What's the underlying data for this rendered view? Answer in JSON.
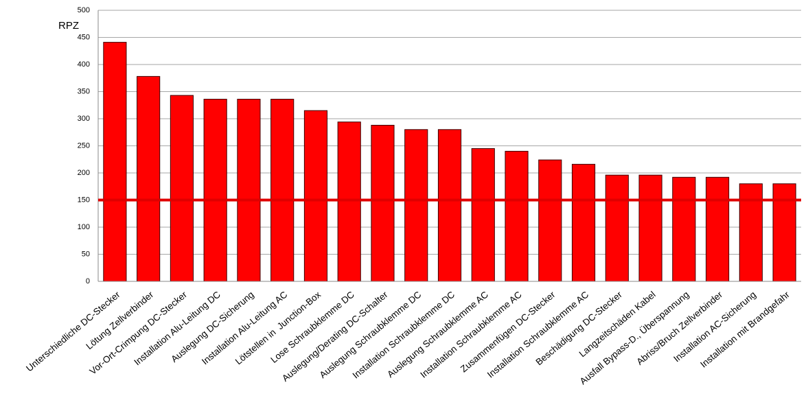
{
  "chart_data": {
    "type": "bar",
    "y_label": "RPZ",
    "categories": [
      "Unterschiedliche DC-Stecker",
      "Lötung Zellverbinder",
      "Vor-Ort-Crimpung DC-Stecker",
      "Installation Alu-Leitung DC",
      "Auslegung DC-Sicherung",
      "Installation Alu-Leitung AC",
      "Lötstellen in  Junction-Box",
      "Lose Schraubklemme DC",
      "Auslegung/Derating DC-Schalter",
      "Auslegung Schraubklemme DC",
      "Installation Schraubklemme DC",
      "Auslegung Schraubklemme AC",
      "Installation Schraubklemme AC",
      "Zusammenfügen DC-Stecker",
      "Installation Schraubklemme AC",
      "Beschädigung DC-Stecker",
      "Langzeitschäden Kabel",
      "Ausfall Bypass-D., Überspannung",
      "Abriss/Bruch Zellverbinder",
      "Installation AC-Sicherung",
      "Installation mit Brandgefahr"
    ],
    "values": [
      441,
      378,
      343,
      336,
      336,
      336,
      315,
      294,
      288,
      280,
      280,
      245,
      240,
      224,
      216,
      196,
      196,
      192,
      192,
      180,
      180
    ],
    "color": "#ff0000",
    "threshold": 150,
    "threshold_color": "#e00000",
    "ylim": [
      0,
      500
    ],
    "yticks": [
      0,
      50,
      100,
      150,
      200,
      250,
      300,
      350,
      400,
      450,
      500
    ],
    "grid": true
  }
}
